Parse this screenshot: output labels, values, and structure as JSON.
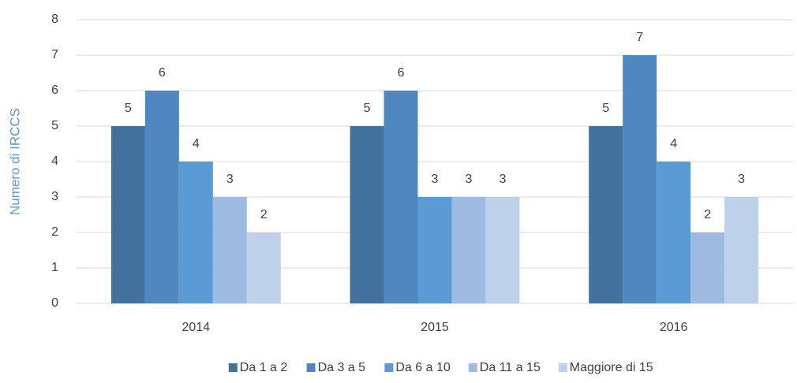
{
  "chart_data": {
    "type": "bar",
    "y_label": "Numero di IRCCS",
    "categories": [
      "2014",
      "2015",
      "2016"
    ],
    "series": [
      {
        "name": "Da 1 a 2",
        "color": "#41719c",
        "values": [
          5,
          5,
          5
        ]
      },
      {
        "name": "Da 3 a 5",
        "color": "#4f87c0",
        "values": [
          6,
          6,
          7
        ]
      },
      {
        "name": "Da 6 a 10",
        "color": "#5b9bd5",
        "values": [
          4,
          3,
          4
        ]
      },
      {
        "name": "Da 11 a 15",
        "color": "#9dbbe0",
        "values": [
          3,
          3,
          2
        ]
      },
      {
        "name": "Maggiore di 15",
        "color": "#bdd1ea",
        "values": [
          2,
          3,
          3
        ]
      }
    ],
    "ylim": [
      0,
      8
    ],
    "yticks": [
      0,
      1,
      2,
      3,
      4,
      5,
      6,
      7,
      8
    ],
    "grid": true,
    "legend": "bottom",
    "data_labels": true
  }
}
